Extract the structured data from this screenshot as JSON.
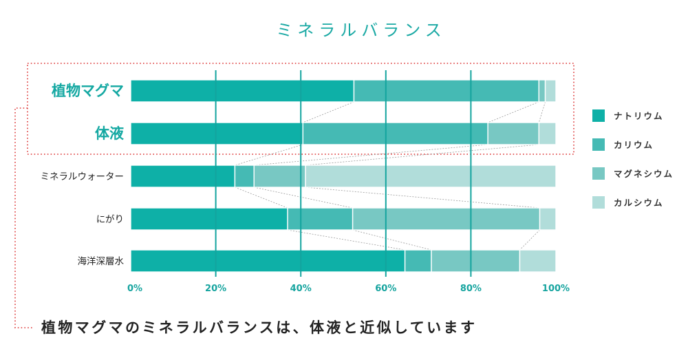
{
  "title": "ミネラルバランス",
  "caption": "植物マグマのミネラルバランスは、体液と近似しています",
  "chart_data": {
    "type": "bar",
    "orientation": "horizontal",
    "stacked": true,
    "title": "ミネラルバランス",
    "categories": [
      "植物マグマ",
      "体液",
      "ミネラルウォーター",
      "にがり",
      "海洋深層水"
    ],
    "highlighted_categories": [
      "植物マグマ",
      "体液"
    ],
    "series": [
      {
        "name": "ナトリウム",
        "color": "#0eb0a7",
        "values": [
          52.5,
          40.5,
          24.5,
          36.9,
          64.5
        ]
      },
      {
        "name": "カリウム",
        "color": "#45bab4",
        "values": [
          43.5,
          43.5,
          4.5,
          15.3,
          6.2
        ]
      },
      {
        "name": "マグネシウム",
        "color": "#78c8c3",
        "values": [
          1.5,
          12,
          12.1,
          44,
          20.8
        ]
      },
      {
        "name": "カルシウム",
        "color": "#b1ddda",
        "values": [
          2.5,
          4,
          58.9,
          3.8,
          8.5
        ]
      }
    ],
    "xlim": [
      0,
      100
    ],
    "xticks": [
      "0%",
      "20%",
      "40%",
      "60%",
      "80%",
      "100%"
    ],
    "grid": true,
    "legend_position": "right"
  },
  "colors": {
    "accent": "#14a8a2",
    "highlight_border": "#e04b4b",
    "gridline": "#13a49e"
  }
}
